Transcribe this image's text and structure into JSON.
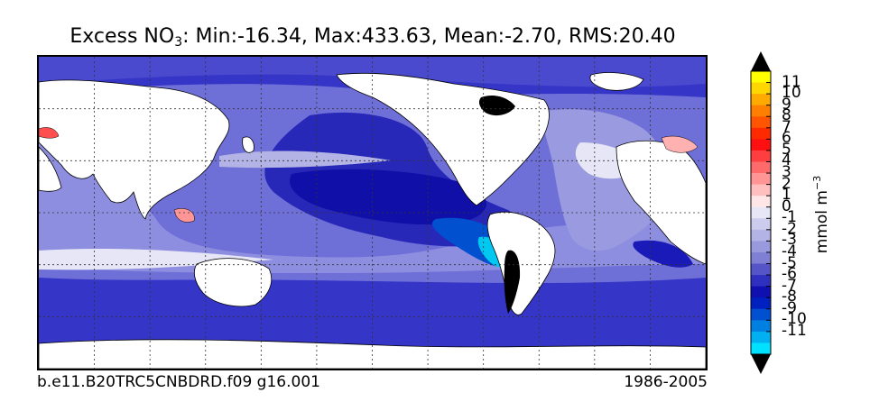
{
  "title": {
    "prefix": "Excess NO",
    "subscript": "3",
    "stats": ": Min:-16.34, Max:433.63, Mean:-2.70, RMS:20.40"
  },
  "footer": {
    "case_name": "b.e11.B20TRC5CNBDRD.f09 g16.001",
    "years": "1986-2005"
  },
  "colorbar": {
    "unit_base": "mmol m",
    "unit_exponent": "−3",
    "ticks": [
      "11",
      "10",
      "9",
      "8",
      "7",
      "6",
      "5",
      "4",
      "3",
      "2",
      "1",
      "0",
      "-1",
      "-2",
      "-3",
      "-4",
      "-5",
      "-6",
      "-7",
      "-8",
      "-9",
      "-10",
      "-11"
    ],
    "colors_top_to_bottom": [
      "#ffff00",
      "#ffd700",
      "#ffaa00",
      "#ff7f00",
      "#ff5500",
      "#ff2a00",
      "#ff1010",
      "#ff3f3f",
      "#ff6a6a",
      "#ff9595",
      "#ffbfbf",
      "#ffe6e6",
      "#e6e6f6",
      "#ccccee",
      "#b3b3e6",
      "#9999dd",
      "#7f7fd4",
      "#5555c8",
      "#3030c0",
      "#1010b0",
      "#0020c0",
      "#0050d0",
      "#0080e0",
      "#00b0f0",
      "#00e0ff"
    ],
    "extend": "both"
  },
  "chart_data": {
    "type": "heatmap",
    "title": "Excess NO3: Min:-16.34, Max:433.63, Mean:-2.70, RMS:20.40",
    "variable": "Excess NO3",
    "min": -16.34,
    "max": 433.63,
    "mean": -2.7,
    "rms": 20.4,
    "colorbar_label": "mmol m-3",
    "levels": [
      -11,
      -10,
      -9,
      -8,
      -7,
      -6,
      -5,
      -4,
      -3,
      -2,
      -1,
      0,
      1,
      2,
      3,
      4,
      5,
      6,
      7,
      8,
      9,
      10,
      11
    ],
    "grid": true,
    "legend_placement": "right",
    "case": "b.e11.B20TRC5CNBDRD.f09 g16.001",
    "period": "1986-2005"
  }
}
